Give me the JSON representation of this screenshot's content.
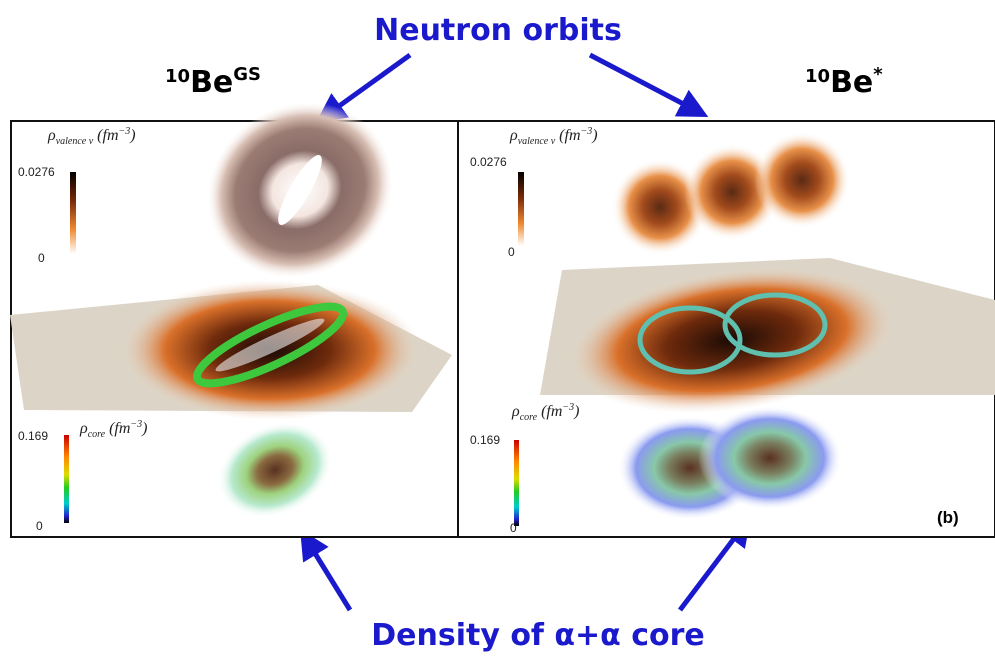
{
  "header": {
    "title": "Neutron orbits"
  },
  "panels": [
    {
      "mass_number": "10",
      "element": "Be",
      "state": "GS",
      "valence_scale": {
        "symbol": "ρ",
        "subscript": "valence ν",
        "unit": "(fm",
        "exponent": "−3",
        "close": ")",
        "max": "0.0276",
        "min": "0"
      },
      "core_scale": {
        "symbol": "ρ",
        "subscript": "core",
        "unit": "(fm",
        "exponent": "−3",
        "close": ")",
        "max": "0.169",
        "min": "0"
      }
    },
    {
      "mass_number": "10",
      "element": "Be",
      "state": "*",
      "valence_scale": {
        "symbol": "ρ",
        "subscript": "valence ν",
        "unit": "(fm",
        "exponent": "−3",
        "close": ")",
        "max": "0.0276",
        "min": "0"
      },
      "core_scale": {
        "symbol": "ρ",
        "subscript": "core",
        "unit": "(fm",
        "exponent": "−3",
        "close": ")",
        "max": "0.169",
        "min": "0"
      },
      "panel_tag": "(b)"
    }
  ],
  "footer": {
    "caption": "Density of α+α core"
  }
}
